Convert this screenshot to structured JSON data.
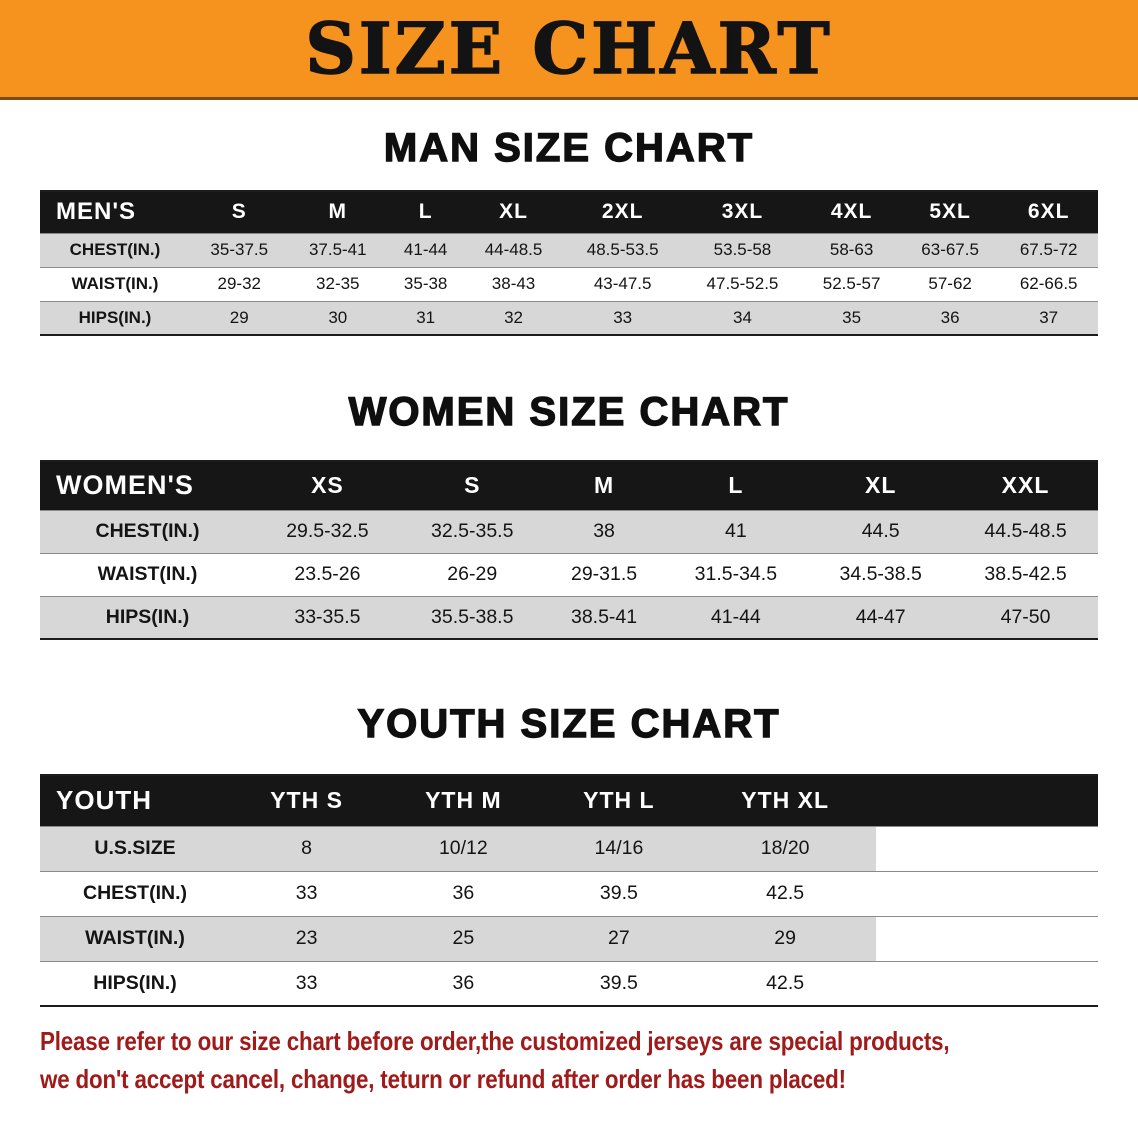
{
  "banner": {
    "title": "SIZE CHART"
  },
  "colors": {
    "banner_bg": "#f6921e",
    "header_bg": "#161616",
    "shade_row": "#d7d7d7",
    "footer_text": "#a01a1a"
  },
  "sections": [
    {
      "id": "men",
      "heading": "MAN SIZE CHART",
      "table": {
        "header_label": "MEN'S",
        "columns": [
          "S",
          "M",
          "L",
          "XL",
          "2XL",
          "3XL",
          "4XL",
          "5XL",
          "6XL"
        ],
        "rows": [
          {
            "label": "CHEST(IN.)",
            "values": [
              "35-37.5",
              "37.5-41",
              "41-44",
              "44-48.5",
              "48.5-53.5",
              "53.5-58",
              "58-63",
              "63-67.5",
              "67.5-72"
            ]
          },
          {
            "label": "WAIST(IN.)",
            "values": [
              "29-32",
              "32-35",
              "35-38",
              "38-43",
              "43-47.5",
              "47.5-52.5",
              "52.5-57",
              "57-62",
              "62-66.5"
            ]
          },
          {
            "label": "HIPS(IN.)",
            "values": [
              "29",
              "30",
              "31",
              "32",
              "33",
              "34",
              "35",
              "36",
              "37"
            ]
          }
        ],
        "trailing_space": false
      }
    },
    {
      "id": "women",
      "heading": "WOMEN SIZE CHART",
      "table": {
        "header_label": "WOMEN'S",
        "columns": [
          "XS",
          "S",
          "M",
          "L",
          "XL",
          "XXL"
        ],
        "rows": [
          {
            "label": "CHEST(IN.)",
            "values": [
              "29.5-32.5",
              "32.5-35.5",
              "38",
              "41",
              "44.5",
              "44.5-48.5"
            ]
          },
          {
            "label": "WAIST(IN.)",
            "values": [
              "23.5-26",
              "26-29",
              "29-31.5",
              "31.5-34.5",
              "34.5-38.5",
              "38.5-42.5"
            ]
          },
          {
            "label": "HIPS(IN.)",
            "values": [
              "33-35.5",
              "35.5-38.5",
              "38.5-41",
              "41-44",
              "44-47",
              "47-50"
            ]
          }
        ],
        "trailing_space": false
      }
    },
    {
      "id": "youth",
      "heading": "YOUTH SIZE CHART",
      "table": {
        "header_label": "YOUTH",
        "columns": [
          "YTH S",
          "YTH M",
          "YTH L",
          "YTH XL"
        ],
        "rows": [
          {
            "label": "U.S.SIZE",
            "values": [
              "8",
              "10/12",
              "14/16",
              "18/20"
            ]
          },
          {
            "label": "CHEST(IN.)",
            "values": [
              "33",
              "36",
              "39.5",
              "42.5"
            ]
          },
          {
            "label": "WAIST(IN.)",
            "values": [
              "23",
              "25",
              "27",
              "29"
            ]
          },
          {
            "label": "HIPS(IN.)",
            "values": [
              "33",
              "36",
              "39.5",
              "42.5"
            ]
          }
        ],
        "trailing_space": true
      }
    }
  ],
  "footer": {
    "line1": "Please refer to our size chart before order,the customized jerseys are special products,",
    "line2": "we don't accept cancel, change, teturn or refund after order has been placed!"
  }
}
